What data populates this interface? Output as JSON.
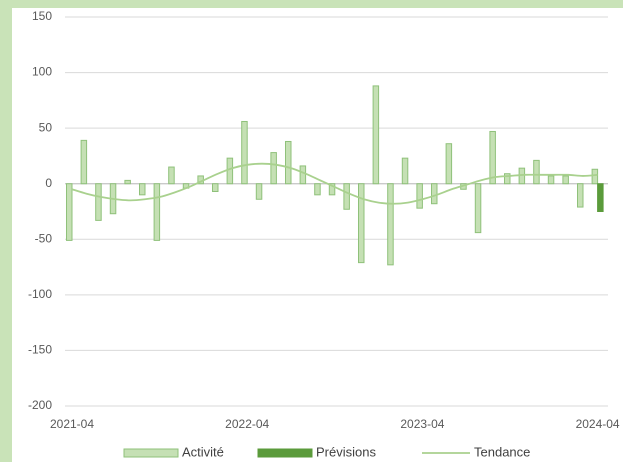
{
  "chart_data": {
    "type": "bar",
    "categories": [
      "2021-04",
      null,
      null,
      null,
      null,
      null,
      null,
      null,
      null,
      null,
      null,
      null,
      "2022-04",
      null,
      null,
      null,
      null,
      null,
      null,
      null,
      null,
      null,
      null,
      null,
      "2023-04",
      null,
      null,
      null,
      null,
      null,
      null,
      null,
      null,
      null,
      null,
      null,
      "2024-04"
    ],
    "series": [
      {
        "name": "Activité",
        "type": "bar",
        "color": "#c5e0b4",
        "stroke": "#8fc17a",
        "values": [
          -51,
          39,
          -33,
          -27,
          3,
          -10,
          -51,
          15,
          -4,
          7,
          -7,
          23,
          56,
          -14,
          28,
          38,
          16,
          -10,
          -10,
          -23,
          -71,
          88,
          -73,
          23,
          -22,
          -18,
          36,
          -5,
          -44,
          47,
          9,
          14,
          21,
          7,
          7,
          -21,
          13
        ]
      },
      {
        "name": "Prévisions",
        "type": "bar",
        "color": "#5b9b3b",
        "stroke": "#5b9b3b",
        "values": [
          null,
          null,
          null,
          null,
          null,
          null,
          null,
          null,
          null,
          null,
          null,
          null,
          null,
          null,
          null,
          null,
          null,
          null,
          null,
          null,
          null,
          null,
          null,
          null,
          null,
          null,
          null,
          null,
          null,
          null,
          null,
          null,
          null,
          null,
          null,
          null,
          -25
        ]
      },
      {
        "name": "Tendance",
        "type": "line",
        "color": "#a9d18e",
        "values": [
          -5,
          -9,
          -12,
          -14,
          -15,
          -14,
          -12,
          -8,
          -3,
          3,
          9,
          14,
          17,
          18,
          17,
          14,
          9,
          3,
          -3,
          -9,
          -14,
          -17,
          -18,
          -17,
          -14,
          -10,
          -5,
          -1,
          3,
          6,
          7,
          8,
          8,
          8,
          8,
          7,
          8
        ]
      }
    ],
    "ylim": [
      -200,
      150
    ],
    "yticks": [
      -200,
      -150,
      -100,
      -50,
      0,
      50,
      100,
      150
    ],
    "grid": true,
    "legend": "bottom"
  }
}
